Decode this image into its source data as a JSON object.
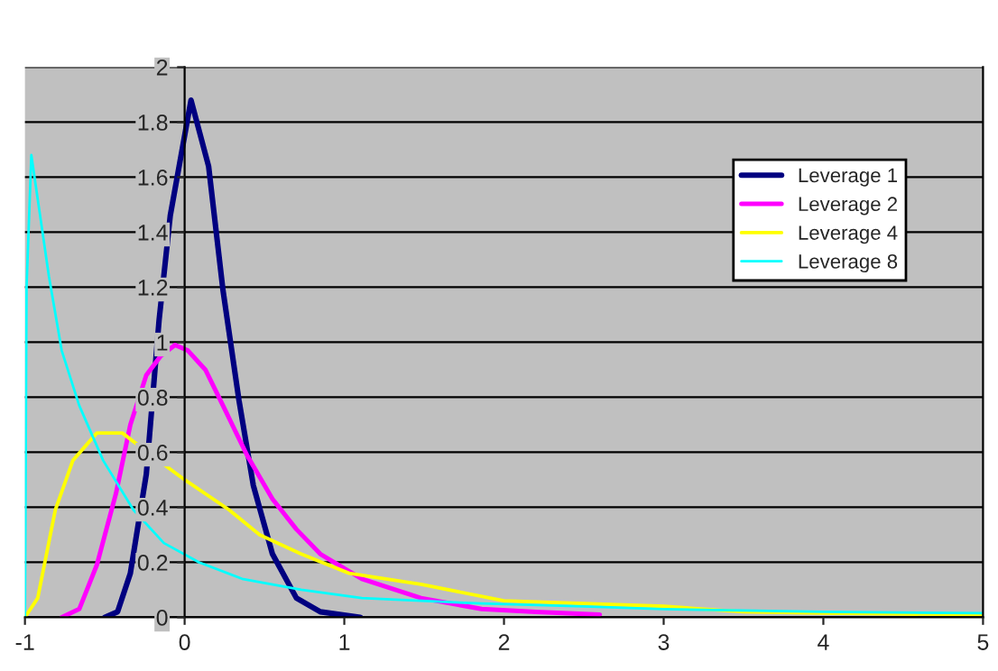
{
  "chart_data": {
    "type": "line",
    "xlim": [
      -1,
      5
    ],
    "ylim": [
      0,
      2
    ],
    "xticks": [
      -1,
      0,
      1,
      2,
      3,
      4,
      5
    ],
    "yticks": [
      0,
      0.2,
      0.4,
      0.6,
      0.8,
      1,
      1.2,
      1.4,
      1.6,
      1.8,
      2
    ],
    "grid": "y",
    "legend": "top right",
    "marker": "none",
    "line_style": "solid",
    "series": [
      {
        "name": "Leverage 1",
        "color": "#000080",
        "x": [
          -0.5,
          -0.42,
          -0.34,
          -0.24,
          -0.16,
          -0.09,
          0.04,
          0.15,
          0.24,
          0.34,
          0.43,
          0.55,
          0.7,
          0.85,
          1.1
        ],
        "values": [
          0,
          0.02,
          0.16,
          0.52,
          1.08,
          1.46,
          1.88,
          1.64,
          1.19,
          0.79,
          0.48,
          0.23,
          0.07,
          0.02,
          0
        ]
      },
      {
        "name": "Leverage 2",
        "color": "#ff00ff",
        "x": [
          -0.77,
          -0.66,
          -0.55,
          -0.43,
          -0.34,
          -0.24,
          -0.15,
          -0.06,
          0.02,
          0.13,
          0.24,
          0.39,
          0.55,
          0.7,
          0.85,
          1.11,
          1.48,
          1.86,
          2.2,
          2.6
        ],
        "values": [
          0,
          0.03,
          0.19,
          0.45,
          0.7,
          0.88,
          0.95,
          0.99,
          0.97,
          0.9,
          0.77,
          0.59,
          0.43,
          0.32,
          0.23,
          0.14,
          0.07,
          0.03,
          0.02,
          0.01
        ]
      },
      {
        "name": "Leverage 4",
        "color": "#ffff00",
        "x": [
          -1,
          -0.92,
          -0.81,
          -0.7,
          -0.55,
          -0.39,
          -0.21,
          0,
          0.28,
          0.47,
          0.73,
          1.03,
          1.48,
          2.0,
          2.5,
          3,
          3.5,
          4,
          4.5,
          5
        ],
        "values": [
          0,
          0.07,
          0.39,
          0.57,
          0.67,
          0.67,
          0.59,
          0.5,
          0.39,
          0.3,
          0.23,
          0.16,
          0.12,
          0.06,
          0.05,
          0.04,
          0.02,
          0.015,
          0.012,
          0.01
        ]
      },
      {
        "name": "Leverage 8",
        "color": "#00ffff",
        "x": [
          -1,
          -0.99,
          -0.96,
          -0.85,
          -0.77,
          -0.66,
          -0.51,
          -0.32,
          -0.13,
          0.09,
          0.36,
          0.73,
          1.11,
          1.86,
          2.5,
          3,
          4,
          5
        ],
        "values": [
          0,
          1.2,
          1.68,
          1.24,
          0.97,
          0.77,
          0.57,
          0.39,
          0.27,
          0.2,
          0.14,
          0.1,
          0.07,
          0.05,
          0.04,
          0.03,
          0.02,
          0.015
        ]
      }
    ]
  }
}
